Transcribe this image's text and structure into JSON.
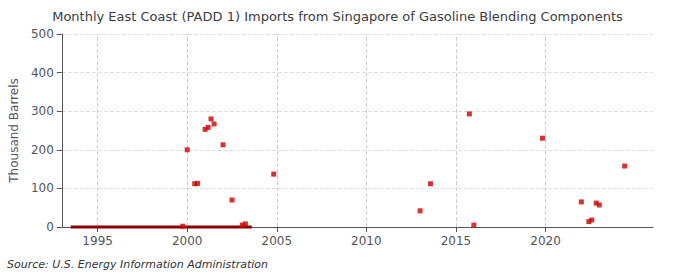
{
  "chart_data": {
    "type": "scatter",
    "title": "Monthly East Coast (PADD 1) Imports from Singapore of Gasoline Blending Components",
    "ylabel": "Thousand Barrels",
    "source": "Source: U.S. Energy Information Administration",
    "xlim": [
      1993.0,
      2026.0
    ],
    "ylim": [
      0,
      500
    ],
    "xticks": [
      1995,
      2000,
      2005,
      2010,
      2015,
      2020
    ],
    "yticks": [
      0,
      100,
      200,
      300,
      400,
      500
    ],
    "grid": true,
    "series": [
      {
        "type": "scatter",
        "marker": "square",
        "color": "#cc0000",
        "x": [
          1999.75,
          2000.0,
          2000.42,
          2000.58,
          2001.0,
          2001.17,
          2001.33,
          2001.5,
          2002.0,
          2002.5,
          2003.08,
          2003.25,
          2004.83,
          2013.0,
          2013.58,
          2015.75,
          2016.0,
          2019.83,
          2022.0,
          2022.42,
          2022.58,
          2022.83,
          2023.0,
          2024.42
        ],
        "values": [
          2,
          200,
          112,
          113,
          253,
          258,
          280,
          267,
          213,
          70,
          5,
          8,
          137,
          42,
          112,
          293,
          5,
          230,
          65,
          14,
          18,
          62,
          57,
          158
        ]
      },
      {
        "type": "line",
        "color": "#8b0000",
        "x": [
          1993.5,
          2003.6
        ],
        "values": [
          0,
          0
        ]
      }
    ]
  }
}
